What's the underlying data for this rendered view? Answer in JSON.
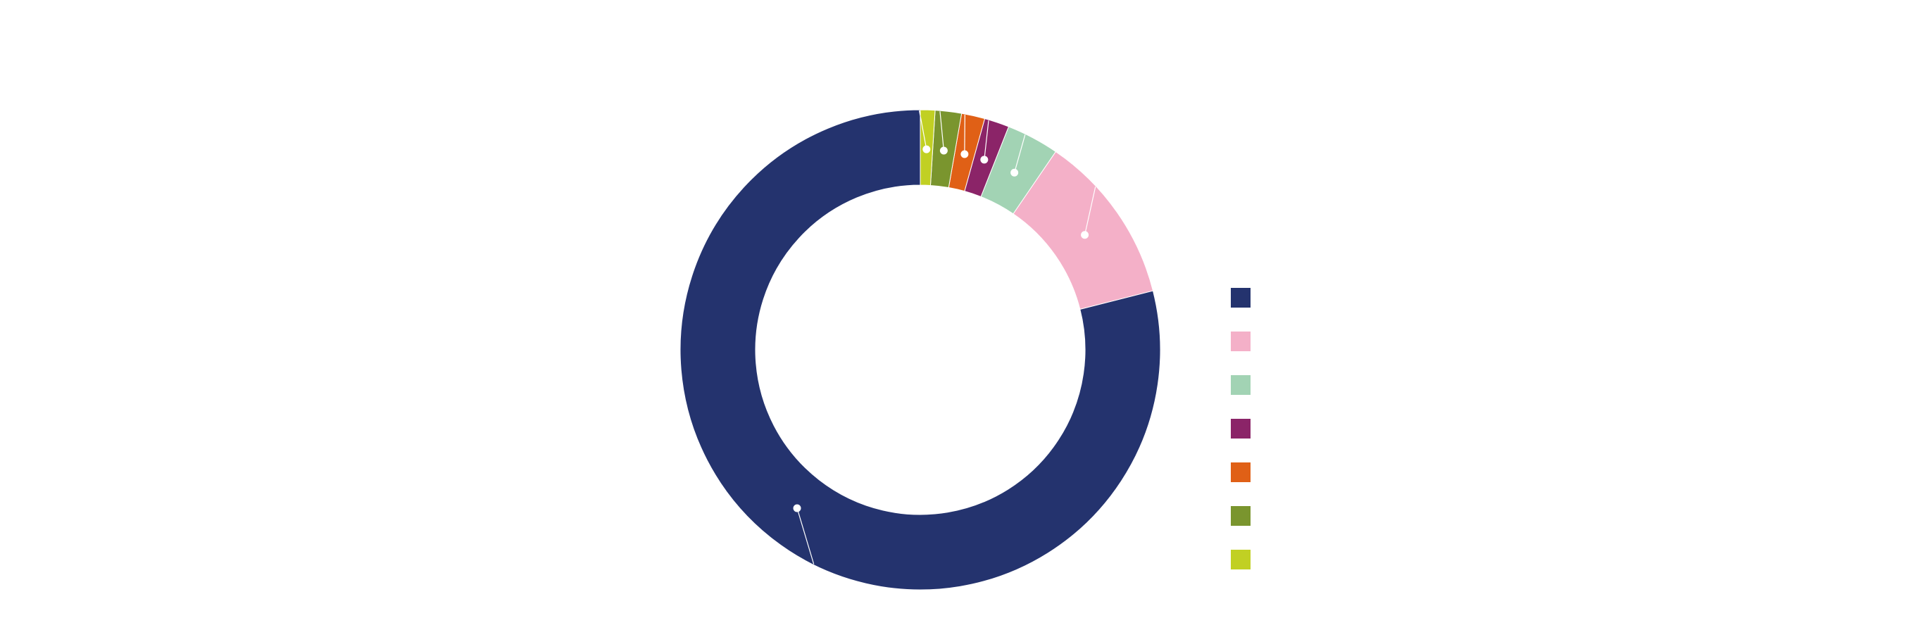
{
  "chart_data": {
    "type": "pie",
    "variant": "donut",
    "title": "",
    "categories": [
      "",
      "",
      "",
      "",
      "",
      "",
      ""
    ],
    "values": [
      80.3,
      11.7,
      3.6,
      1.7,
      1.6,
      1.8,
      1.0
    ],
    "colors": [
      "#24336e",
      "#f4b0c8",
      "#a2d3b4",
      "#8b2468",
      "#e06016",
      "#7a952e",
      "#c1d023"
    ],
    "legend": {
      "position": "right",
      "entries": [
        "",
        "",
        "",
        "",
        "",
        "",
        ""
      ]
    },
    "data_labels": false,
    "leader_markers": true
  }
}
